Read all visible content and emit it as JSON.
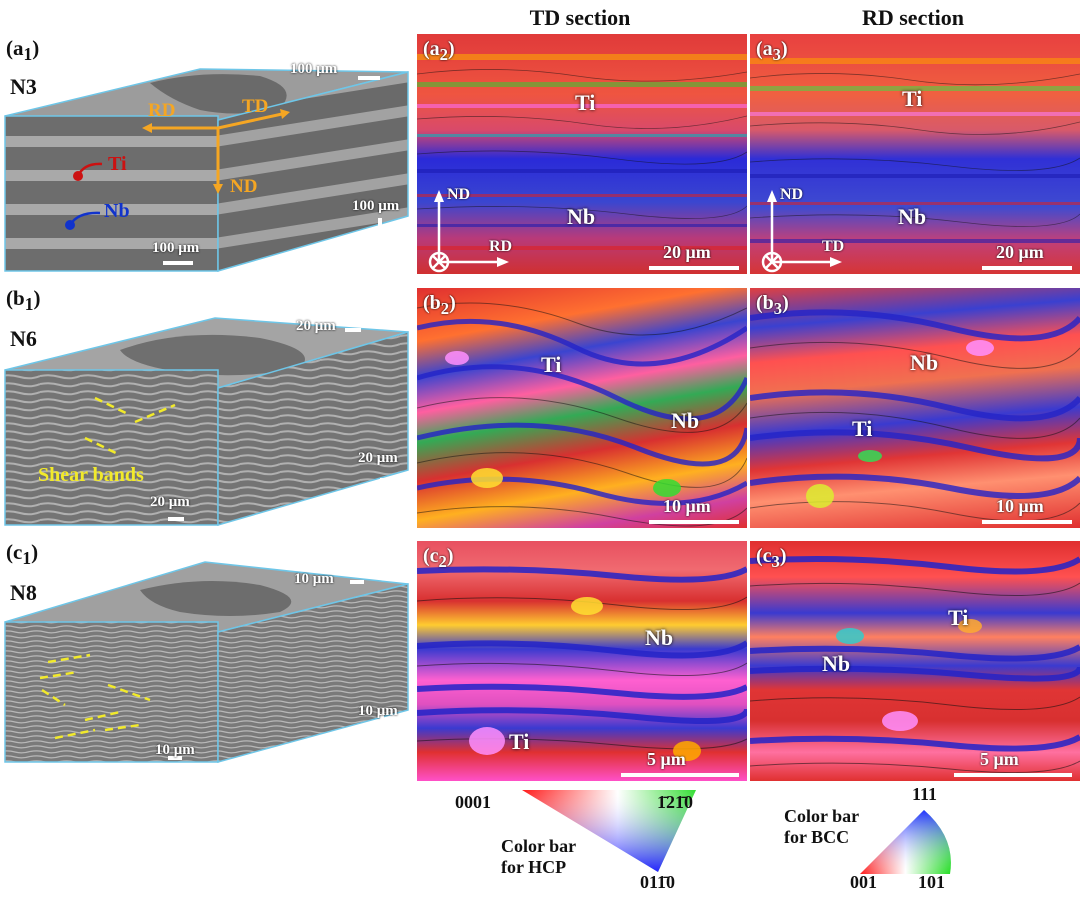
{
  "columns": {
    "td": "TD section",
    "rd": "RD section"
  },
  "rows": [
    {
      "cube_label": "(a",
      "cube_sub": "1",
      "name": "N3",
      "cube_scales": [
        "100 μm",
        "100 μm",
        "100 μm"
      ],
      "cube_axes": {
        "rd": "RD",
        "td": "TD",
        "nd": "ND"
      },
      "phase_markers": {
        "ti": "Ti",
        "nb": "Nb"
      },
      "panels": [
        {
          "label": "(a",
          "sub": "2",
          "ti": "Ti",
          "nb": "Nb",
          "scale": "20 μm",
          "axes": {
            "up": "ND",
            "right": "RD"
          }
        },
        {
          "label": "(a",
          "sub": "3",
          "ti": "Ti",
          "nb": "Nb",
          "scale": "20 μm",
          "axes": {
            "up": "ND",
            "right": "TD"
          }
        }
      ]
    },
    {
      "cube_label": "(b",
      "cube_sub": "1",
      "name": "N6",
      "cube_scales": [
        "20 μm",
        "20 μm",
        "20 μm"
      ],
      "annotation": "Shear bands",
      "panels": [
        {
          "label": "(b",
          "sub": "2",
          "ti": "Ti",
          "nb": "Nb",
          "scale": "10 μm"
        },
        {
          "label": "(b",
          "sub": "3",
          "ti": "Ti",
          "nb": "Nb",
          "scale": "10 μm"
        }
      ]
    },
    {
      "cube_label": "(c",
      "cube_sub": "1",
      "name": "N8",
      "cube_scales": [
        "10 μm",
        "10 μm",
        "10 μm"
      ],
      "panels": [
        {
          "label": "(c",
          "sub": "2",
          "ti": "Ti",
          "nb": "Nb",
          "scale": "5 μm"
        },
        {
          "label": "(c",
          "sub": "3",
          "ti": "Ti",
          "nb": "Nb",
          "scale": "5 μm"
        }
      ]
    }
  ],
  "colorbars": {
    "hcp": {
      "corner_left": "0001",
      "corner_right": "1̄21̄0",
      "corner_bottom": "011̄0",
      "caption_1": "Color bar",
      "caption_2": "for HCP"
    },
    "bcc": {
      "corner_top": "111",
      "corner_left": "001",
      "corner_right": "101",
      "caption_1": "Color bar",
      "caption_2": "for BCC"
    }
  },
  "colors": {
    "cube_edge": "#6ec6e8",
    "axis_orange": "#f5a623",
    "ti_marker": "#cc1111",
    "nb_marker": "#1133cc",
    "shear_band": "#f2ea2a"
  }
}
